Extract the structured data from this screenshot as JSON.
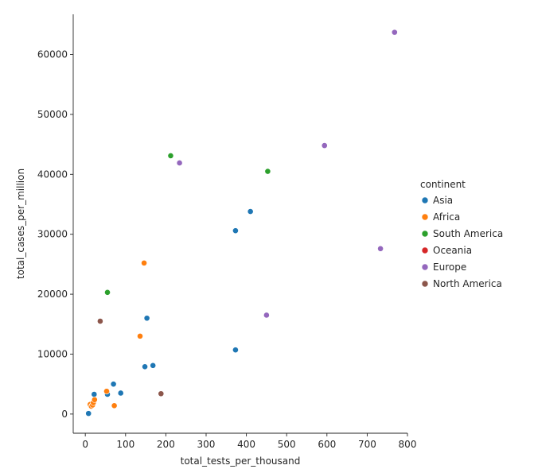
{
  "chart_data": {
    "type": "scatter",
    "title": "",
    "xlabel": "total_tests_per_thousand",
    "ylabel": "total_cases_per_million",
    "xlim": [
      -30,
      800
    ],
    "ylim": [
      -3200,
      66700
    ],
    "xticks": [
      0,
      100,
      200,
      300,
      400,
      500,
      600,
      700,
      800
    ],
    "yticks": [
      0,
      10000,
      20000,
      30000,
      40000,
      50000,
      60000
    ],
    "grid": false,
    "legend_title": "continent",
    "legend_placement": "right",
    "series": [
      {
        "name": "Asia",
        "color": "#1f77b4",
        "points": [
          [
            8,
            100
          ],
          [
            22,
            3300
          ],
          [
            55,
            3300
          ],
          [
            70,
            5000
          ],
          [
            88,
            3500
          ],
          [
            148,
            7900
          ],
          [
            168,
            8100
          ],
          [
            153,
            16000
          ],
          [
            373,
            10700
          ],
          [
            373,
            30600
          ],
          [
            410,
            33800
          ]
        ]
      },
      {
        "name": "Africa",
        "color": "#ff7f0e",
        "points": [
          [
            12,
            1600
          ],
          [
            15,
            1300
          ],
          [
            18,
            1500
          ],
          [
            20,
            1900
          ],
          [
            23,
            2400
          ],
          [
            53,
            3800
          ],
          [
            72,
            1400
          ],
          [
            136,
            13000
          ],
          [
            146,
            25200
          ]
        ]
      },
      {
        "name": "South America",
        "color": "#2ca02c",
        "points": [
          [
            55,
            20300
          ],
          [
            212,
            43100
          ],
          [
            453,
            40500
          ]
        ]
      },
      {
        "name": "Oceania",
        "color": "#d62728",
        "points": []
      },
      {
        "name": "Europe",
        "color": "#9467bd",
        "points": [
          [
            234,
            41900
          ],
          [
            450,
            16500
          ],
          [
            594,
            44800
          ],
          [
            733,
            27600
          ],
          [
            768,
            63700
          ]
        ]
      },
      {
        "name": "North America",
        "color": "#8c564b",
        "points": [
          [
            37,
            15500
          ],
          [
            188,
            3400
          ]
        ]
      }
    ]
  }
}
